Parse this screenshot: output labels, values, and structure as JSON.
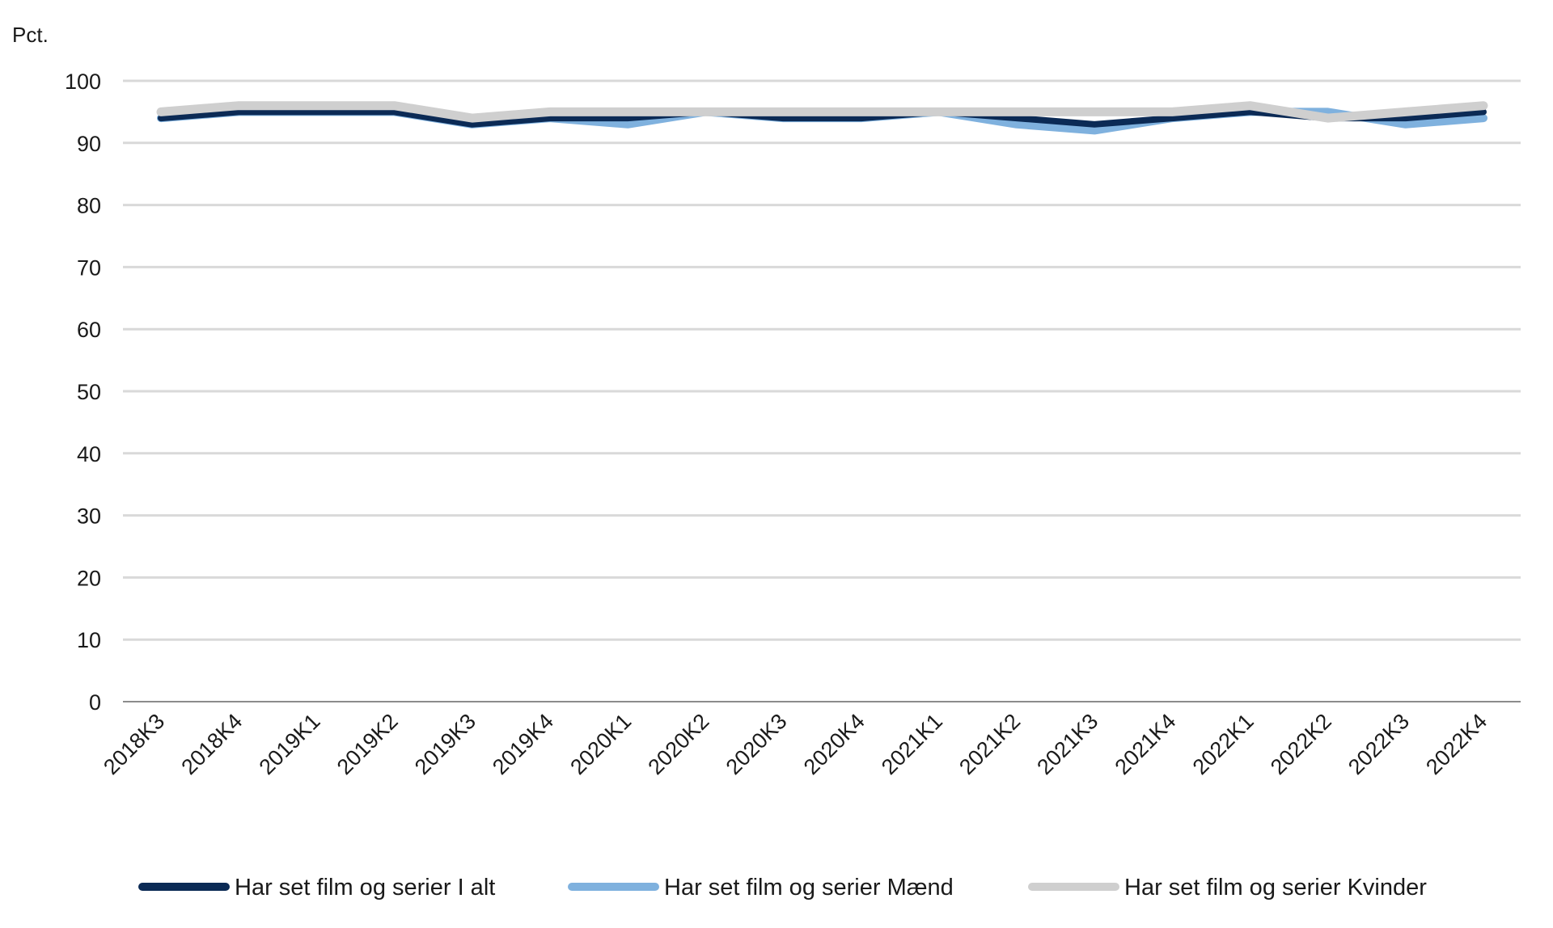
{
  "chart_data": {
    "type": "line",
    "title": "",
    "xlabel": "",
    "ylabel": "Pct.",
    "ylim": [
      0,
      100
    ],
    "yticks": [
      0,
      10,
      20,
      30,
      40,
      50,
      60,
      70,
      80,
      90,
      100
    ],
    "grid": true,
    "legend_position": "bottom",
    "categories": [
      "2018K3",
      "2018K4",
      "2019K1",
      "2019K2",
      "2019K3",
      "2019K4",
      "2020K1",
      "2020K2",
      "2020K3",
      "2020K4",
      "2021K1",
      "2021K2",
      "2021K3",
      "2021K4",
      "2022K1",
      "2022K2",
      "2022K3",
      "2022K4"
    ],
    "series": [
      {
        "name": "Har set film og serier I alt",
        "color": "#0b2a55",
        "values": [
          94,
          95,
          95,
          95,
          93,
          94,
          94,
          95,
          94,
          94,
          95,
          94,
          93,
          94,
          95,
          94,
          94,
          95
        ]
      },
      {
        "name": "Har set film og serier Mænd",
        "color": "#7fb1de",
        "values": [
          94,
          95,
          95,
          95,
          93,
          94,
          93,
          95,
          94,
          94,
          95,
          93,
          92,
          94,
          95,
          95,
          93,
          94
        ]
      },
      {
        "name": "Har set film og serier Kvinder",
        "color": "#cfcfcf",
        "values": [
          95,
          96,
          96,
          96,
          94,
          95,
          95,
          95,
          95,
          95,
          95,
          95,
          95,
          95,
          96,
          94,
          95,
          96
        ]
      }
    ]
  }
}
